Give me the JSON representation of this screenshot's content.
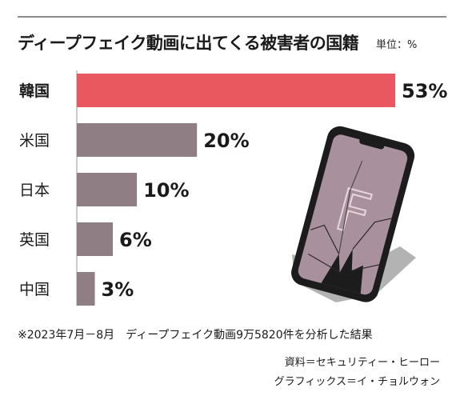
{
  "header": {
    "title": "ディープフェイク動画に出てくる被害者の国籍",
    "unit": "単位：%"
  },
  "chart_data": {
    "type": "bar",
    "orientation": "horizontal",
    "categories": [
      "韓国",
      "米国",
      "日本",
      "英国",
      "中国"
    ],
    "values": [
      53,
      20,
      10,
      6,
      3
    ],
    "value_labels": [
      "53%",
      "20%",
      "10%",
      "6%",
      "3%"
    ],
    "highlight_category": "韓国",
    "xlim": [
      0,
      53
    ],
    "grid": false,
    "colors": {
      "highlight": "#e9585f",
      "default": "#8f7f85"
    }
  },
  "footer": {
    "note": "※2023年7月－8月　ディープフェイク動画9万5820件を分析した結果",
    "source": "資料＝セキュリティー・ヒーロー",
    "credit": "グラフィックス＝イ・チョルウォン"
  },
  "illustration": {
    "icon": "cracked-smartphone-icon",
    "screen_glyph": "F"
  }
}
